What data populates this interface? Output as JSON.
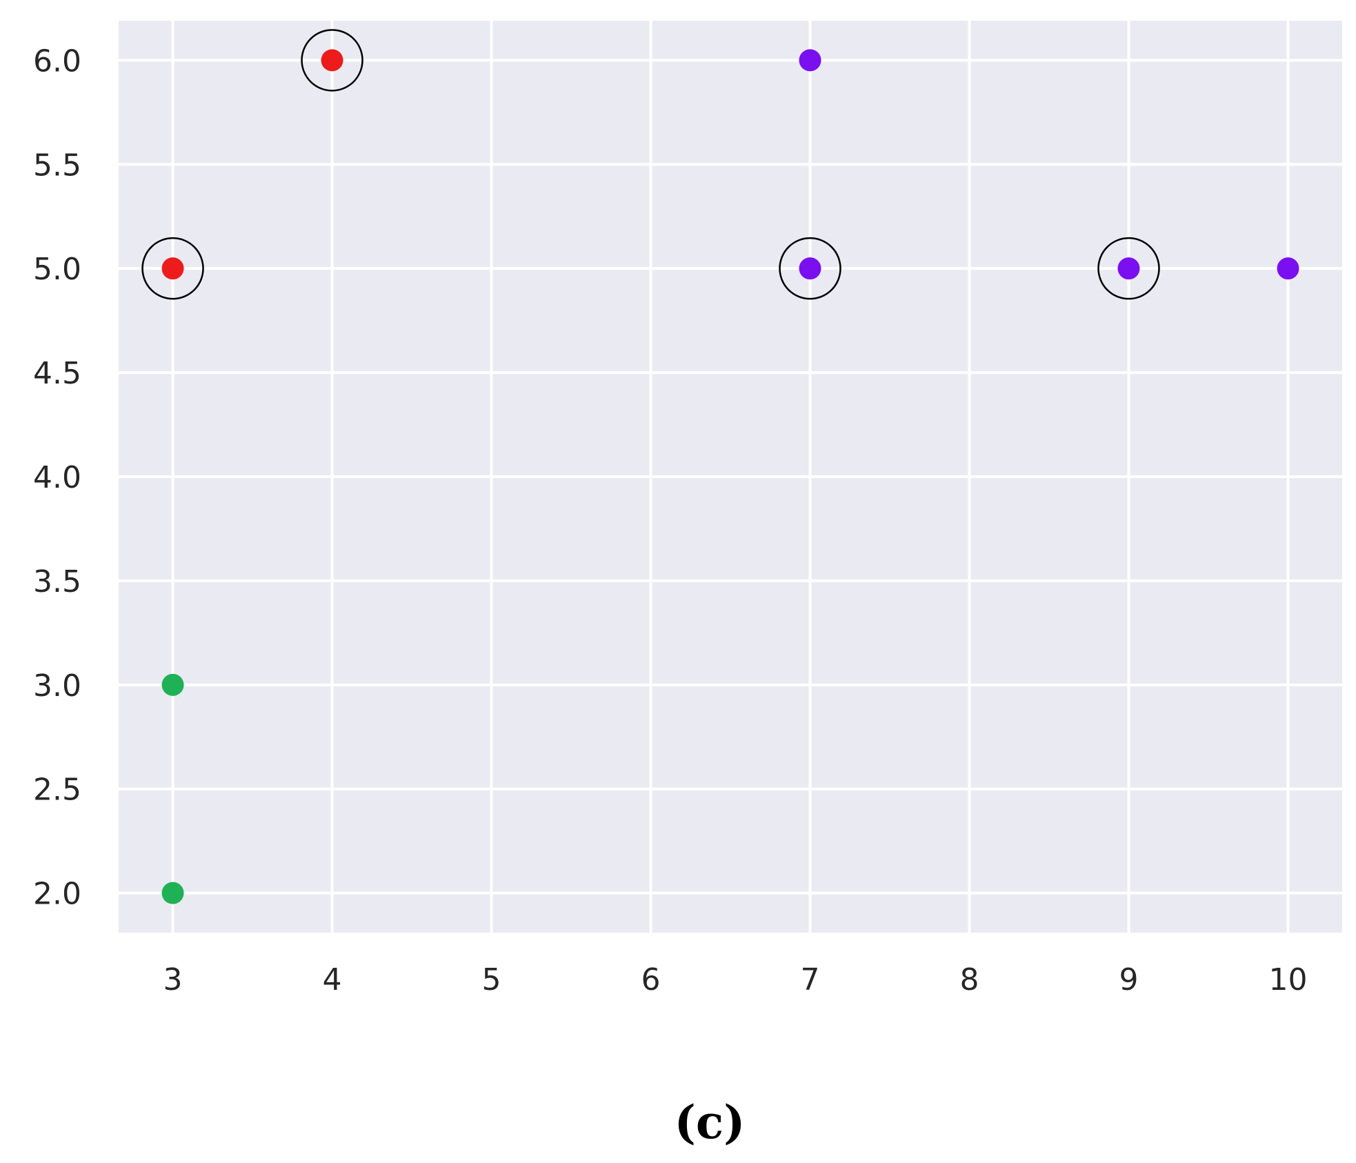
{
  "chart_data": {
    "type": "scatter",
    "title": "",
    "xlabel": "",
    "ylabel": "",
    "xlim": [
      2.66,
      10.34
    ],
    "ylim": [
      1.81,
      6.19
    ],
    "x_ticks": [
      3,
      4,
      5,
      6,
      7,
      8,
      9,
      10
    ],
    "y_ticks": [
      2.0,
      2.5,
      3.0,
      3.5,
      4.0,
      4.5,
      5.0,
      5.5,
      6.0
    ],
    "x_tick_labels": [
      "3",
      "4",
      "5",
      "6",
      "7",
      "8",
      "9",
      "10"
    ],
    "y_tick_labels": [
      "2.0",
      "2.5",
      "3.0",
      "3.5",
      "4.0",
      "4.5",
      "5.0",
      "5.5",
      "6.0"
    ],
    "grid": true,
    "legend": "none",
    "panel_label": "(c)",
    "series": [
      {
        "color": "#ec1c1c",
        "points": [
          {
            "x": 3,
            "y": 5,
            "circled": true
          },
          {
            "x": 4,
            "y": 6,
            "circled": true
          }
        ]
      },
      {
        "color": "#7a0ff0",
        "points": [
          {
            "x": 7,
            "y": 6,
            "circled": false
          },
          {
            "x": 7,
            "y": 5,
            "circled": true
          },
          {
            "x": 9,
            "y": 5,
            "circled": true
          },
          {
            "x": 10,
            "y": 5,
            "circled": false
          }
        ]
      },
      {
        "color": "#1fb155",
        "points": [
          {
            "x": 3,
            "y": 3,
            "circled": false
          },
          {
            "x": 3,
            "y": 2,
            "circled": false
          }
        ]
      }
    ],
    "colors": {
      "plot_background": "#eaeaf2",
      "grid": "#ffffff",
      "circle_outline": "#000000"
    }
  }
}
